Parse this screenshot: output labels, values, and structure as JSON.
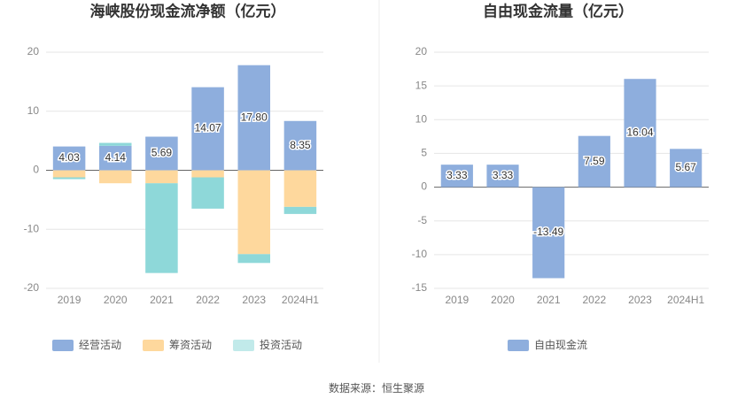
{
  "chart_data": [
    {
      "type": "bar",
      "stacked": true,
      "title": "海峡股份现金流净额（亿元）",
      "categories": [
        "2019",
        "2020",
        "2021",
        "2022",
        "2023",
        "2024H1"
      ],
      "series": [
        {
          "name": "经营活动",
          "color": "#8eaedd",
          "values": [
            4.03,
            4.14,
            5.69,
            14.07,
            17.8,
            8.35
          ],
          "value_labels": [
            "4.03",
            "4.14",
            "5.69",
            "14.07",
            "17.80",
            "8.35"
          ]
        },
        {
          "name": "筹资活动",
          "color": "#fed89d",
          "values": [
            -1.2,
            -2.2,
            -2.2,
            -1.2,
            -14.2,
            -6.2
          ]
        },
        {
          "name": "投资活动",
          "color": "#8ed8d9",
          "values": [
            -0.3,
            0.5,
            -15.2,
            -5.3,
            -1.5,
            -1.2
          ]
        }
      ],
      "ylim": [
        -20,
        20
      ],
      "yticks": [
        -20,
        -10,
        0,
        10,
        20
      ],
      "grid": true
    },
    {
      "type": "bar",
      "stacked": false,
      "title": "自由现金流量（亿元）",
      "categories": [
        "2019",
        "2020",
        "2021",
        "2022",
        "2023",
        "2024H1"
      ],
      "series": [
        {
          "name": "自由现金流",
          "color": "#8eaedd",
          "values": [
            3.33,
            3.33,
            -13.49,
            7.59,
            16.04,
            5.67
          ]
        }
      ],
      "ylim": [
        -15,
        20
      ],
      "yticks": [
        -15,
        -10,
        -5,
        0,
        5,
        10,
        15,
        20
      ],
      "grid": true
    }
  ],
  "source": "数据来源：恒生聚源"
}
